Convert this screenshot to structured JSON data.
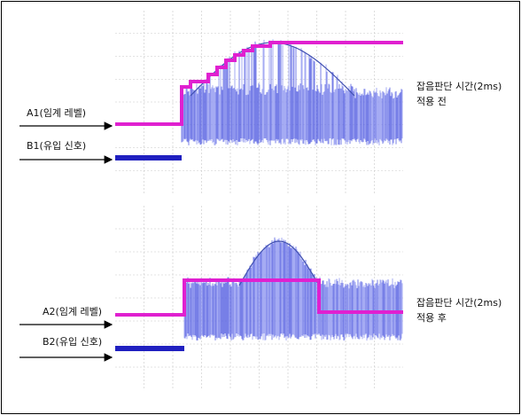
{
  "panels": [
    {
      "threshold_label": "A1(임계 레벨)",
      "signal_label": "B1(유입 신호)",
      "note": "잡음판단 시간(2ms)",
      "status": "적용 전"
    },
    {
      "threshold_label": "A2(임계 레벨)",
      "signal_label": "B2(유입 신호)",
      "note": "잡음판단 시간(2ms)",
      "status": "적용 후"
    }
  ]
}
